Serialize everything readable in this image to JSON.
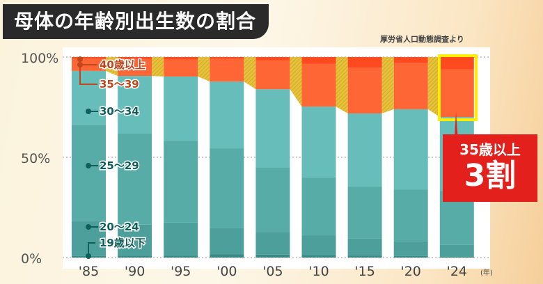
{
  "title": "母体の年齢別出生数の割合",
  "source": "厚労省人口動態調査より",
  "callout": {
    "line1": "35歳以上",
    "line2": "3割"
  },
  "chart_data": {
    "type": "bar",
    "stacked": true,
    "title": "母体の年齢別出生数の割合",
    "xlabel": "(年)",
    "ylabel": "",
    "ylim": [
      0,
      100
    ],
    "yticks": [
      "0%",
      "50%",
      "100%"
    ],
    "categories": [
      "'85",
      "'90",
      "'95",
      "'00",
      "'05",
      "'10",
      "'15",
      "'20",
      "'24"
    ],
    "series": [
      {
        "name": "19歳以下",
        "color": "#3b8985",
        "values": [
          0.8,
          0.9,
          1.0,
          1.7,
          1.5,
          1.2,
          1.1,
          0.8,
          0.6
        ]
      },
      {
        "name": "20～24",
        "color": "#4d9f9b",
        "values": [
          17.3,
          15.5,
          16.4,
          12.9,
          11.3,
          9.9,
          8.3,
          7.2,
          5.7
        ]
      },
      {
        "name": "25～29",
        "color": "#57aca8",
        "values": [
          48.0,
          45.4,
          40.9,
          39.9,
          32.2,
          28.9,
          26.0,
          26.0,
          27.0
        ]
      },
      {
        "name": "30～34",
        "color": "#67bdb9",
        "values": [
          27.0,
          28.8,
          32.0,
          33.3,
          39.0,
          35.3,
          36.5,
          40.0,
          36.8
        ]
      },
      {
        "name": "35～39",
        "color": "#ff6635",
        "values": [
          6.2,
          8.4,
          8.5,
          11.3,
          14.3,
          21.4,
          22.9,
          23.0,
          23.7
        ]
      },
      {
        "name": "40歳以上",
        "color": "#ff4a1f",
        "values": [
          0.7,
          1.0,
          1.2,
          0.9,
          1.7,
          3.3,
          5.2,
          3.0,
          6.2
        ]
      }
    ],
    "annotation": "35歳以上 3割"
  }
}
